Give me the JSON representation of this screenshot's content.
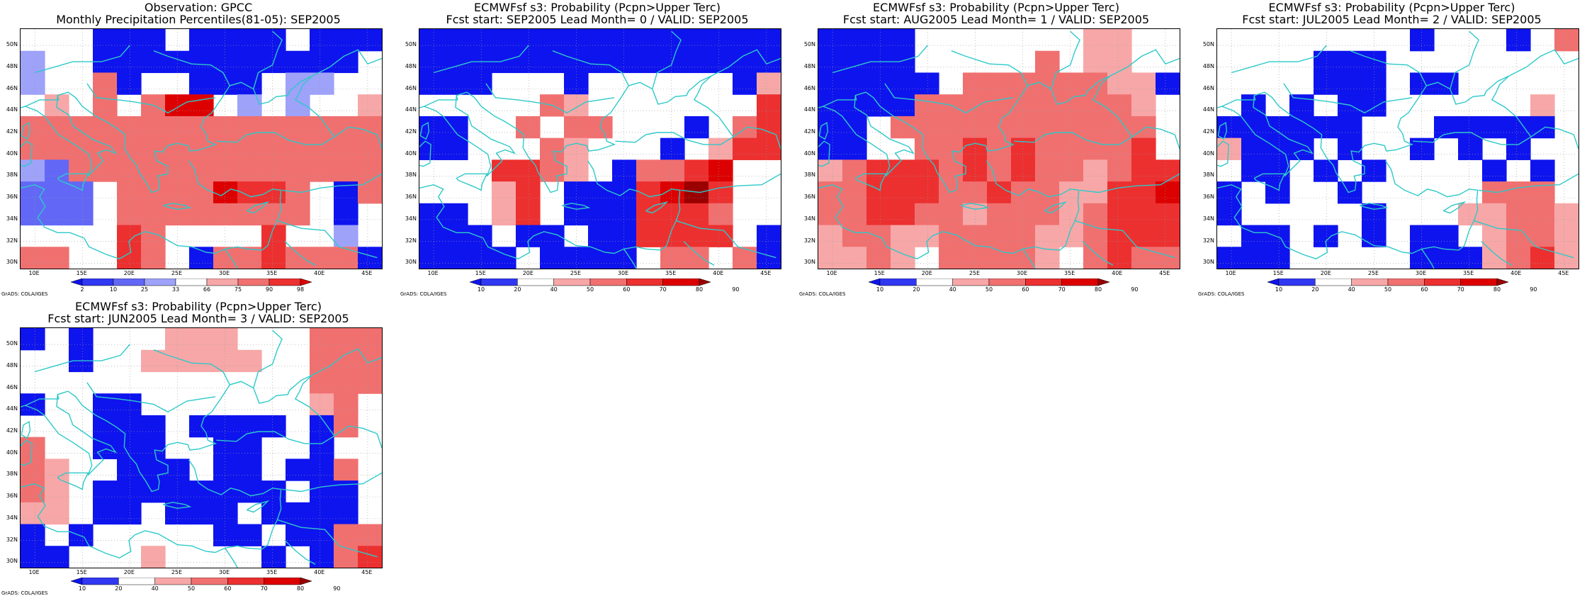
{
  "colors": {
    "coast": "#2ec9c9",
    "palette": {
      "B3": "#0e14ee",
      "B2": "#3138f2",
      "B1": "#6268f5",
      "B0": "#9ea2f9",
      "W": "#ffffff",
      "R0": "#f7a7a7",
      "R1": "#f07070",
      "R2": "#ec3030",
      "R3": "#dd0000",
      "R4": "#9a0000"
    }
  },
  "axes": {
    "lat_labels": [
      "50N",
      "48N",
      "46N",
      "44N",
      "42N",
      "40N",
      "38N",
      "36N",
      "34N",
      "32N",
      "30N"
    ],
    "lon_labels": [
      "10E",
      "15E",
      "20E",
      "25E",
      "30E",
      "35E",
      "40E",
      "45E"
    ]
  },
  "credit": "GrADS: COLA/IGES",
  "chart_data": [
    {
      "type": "heatmap",
      "title_line1": "Observation: GPCC",
      "title_line2": "Monthly Precipitation Percentiles(81-05): SEP2005",
      "colorbar": [
        "2",
        "10",
        "25",
        "33",
        "66",
        "75",
        "90",
        "98"
      ],
      "colorbar_colors": [
        "B3",
        "B2",
        "B1",
        "B0",
        "W",
        "R0",
        "R1",
        "R2",
        "R3"
      ],
      "grid": [
        "WWWBBBWBBBBWBBB",
        "B0WWBBBBBBBBBBB",
        "B0WWR1BWWBBBWB0B0",
        "WR0WR1WR1R3R3WB0WB0WWR0",
        "R1R1R1R1R1R1R1R1R1R1R1R1R1R1R1",
        "R1R1R1R1R1R1R1R1R1R1R1R1R1R1R1",
        "B0B1R1R1R1R1R1R1R1R1R1R1R1R1R1",
        "B1B1B1WR1R1R1R1R3R2R2R1WBR1",
        "B1B1B1WR1R1R1R1R1R1R1R1WBW",
        "WWWWR2R1WWWWR2WWB0W",
        "R1R1WWR2R1WBR1R1R2R1R1R1B"
      ]
    },
    {
      "type": "heatmap",
      "title_line1": "ECMWFsf s3: Probability (Pcpn>Upper Terc)",
      "title_line2": "Fcst start: SEP2005  Lead Month= 0 / VALID: SEP2005",
      "colorbar": [
        "10",
        "20",
        "40",
        "50",
        "60",
        "70",
        "80",
        "90"
      ],
      "colorbar_colors": [
        "B3",
        "B2",
        "W",
        "R0",
        "R1",
        "R2",
        "R3",
        "R4"
      ],
      "grid": [
        "BBBBBBBBBBBBBBB",
        "BBBBBBBBBBBBBBB",
        "BBBWWWBWWWWWWBR0",
        "WWWWWR1R0WWWWWWWR2",
        "BBWWR1WR1R1WWWBWR1R2",
        "BBWWWR1R0WWWBWR0R2R2",
        "WWWR2R2R1R0WBR1R1R2R3WW",
        "WWWR0R2WBBBR2R3R4R2WW",
        "BBWR0R2WBBBR2R2R2R1WW",
        "BBBWBBWBBR2R2R2R2WB",
        "BBBBWBBBBWR1R1WR1B"
      ]
    },
    {
      "type": "heatmap",
      "title_line1": "ECMWFsf s3: Probability (Pcpn>Upper Terc)",
      "title_line2": "Fcst start: AUG2005  Lead Month= 1 / VALID: SEP2005",
      "colorbar": [
        "10",
        "20",
        "40",
        "50",
        "60",
        "70",
        "80",
        "90"
      ],
      "colorbar_colors": [
        "B3",
        "B2",
        "W",
        "R0",
        "R1",
        "R2",
        "R3",
        "R4"
      ],
      "grid": [
        "BBBBWWWWWWWR0R0WW",
        "BBBBWWWWWR1WR0R0WW",
        "BBBBBWR1R1R1R1R1R1R0R0B",
        "BBBBR1R1R1R1R1R1R1R1R1R0W",
        "BBWR1R1R1R1R1R1R1R1R1R1R1W",
        "BBWWR1R1R2R1R2R1R1R1R1R2W",
        "R0R1R2R2R2R1R2R1R2R1R1R0R1R2R2",
        "R1R1R2R2R2R1R1R2R1R1R0R0R2R2R3",
        "R1R1R2R2R1R1R0R1R1R1R0R1R2R2R2",
        "R0R1R1R0R0R1R1R1R1R0R0R1R2R2R2",
        "R0R0R1R0WR1R1R1R1R0WR1R2R1R1"
      ]
    },
    {
      "type": "heatmap",
      "title_line1": "ECMWFsf s3: Probability (Pcpn>Upper Terc)",
      "title_line2": "Fcst start: JUL2005  Lead Month= 2 / VALID: SEP2005",
      "colorbar": [
        "10",
        "20",
        "40",
        "50",
        "60",
        "70",
        "80",
        "90"
      ],
      "colorbar_colors": [
        "B3",
        "B2",
        "W",
        "R0",
        "R1",
        "R2",
        "R3",
        "R4"
      ],
      "grid": [
        "WWWWWWWWBWWWBWR1",
        "WWWWBBBWWWWWWWW",
        "WWWWBBBWBBWWWWW",
        "WBWBWBBWWWWWWR0W",
        "BBBBBBWWWBBBBBW",
        "R0BBBWBWWBWBWBW",
        "WBBWBWBWWWWBWBW",
        "BWBWWBWWWWWR1R1R1W",
        "BWWWWWBWWWR0R0R1R1R0",
        "WBBWBWBWBBWR0R1R1R0",
        "BBBWWWWWBBBR0R1R2R0"
      ]
    },
    {
      "type": "heatmap",
      "title_line1": "ECMWFsf s3: Probability (Pcpn>Upper Terc)",
      "title_line2": "Fcst start: JUN2005  Lead Month= 3 / VALID: SEP2005",
      "colorbar": [
        "10",
        "20",
        "40",
        "50",
        "60",
        "70",
        "80",
        "90"
      ],
      "colorbar_colors": [
        "B3",
        "B2",
        "W",
        "R0",
        "R1",
        "R2",
        "R3",
        "R4"
      ],
      "grid": [
        "BWBWWWR0R0R0WWWR1R1R1",
        "WWBWWR0R0R0R0R0WWR1R1R1",
        "WWWWWWWWWWWWR1R1R1",
        "BWWBBWWWWWWWR0R1W",
        "WWWBBBWBBBBWBR1W",
        "R1WWBBBWWBBWWBW",
        "R1R0WWBBBWBBWBBR1",
        "R1R0WBBBBBBBBWBB",
        "R0R0WBBWBBBWBBBB",
        "BWBWWWWWBBWBBR1R1",
        "BBWWWR0WWWWBWBR1R2"
      ]
    }
  ]
}
